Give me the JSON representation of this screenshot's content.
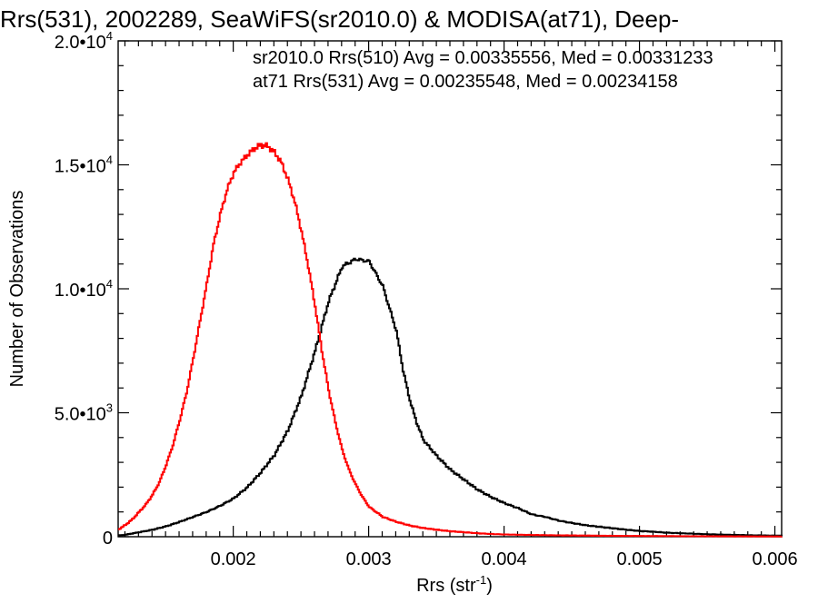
{
  "chart_data": {
    "type": "line",
    "title": "Rrs(531), 2002289, SeaWiFS(sr2010.0) & MODISA(at71), Deep-",
    "xlabel": "Rrs (str",
    "xlabel_sup": "-1",
    "xlabel_end": ")",
    "ylabel": "Number of Observations",
    "xlim": [
      0.00115,
      0.00605
    ],
    "ylim": [
      0,
      20000
    ],
    "x_ticks": [
      {
        "value": 0.002,
        "label": "0.002"
      },
      {
        "value": 0.003,
        "label": "0.003"
      },
      {
        "value": 0.004,
        "label": "0.004"
      },
      {
        "value": 0.005,
        "label": "0.005"
      },
      {
        "value": 0.006,
        "label": "0.006"
      }
    ],
    "y_ticks": [
      {
        "value": 0,
        "mantissa": "0",
        "exp": ""
      },
      {
        "value": 5000,
        "mantissa": "5.0•10",
        "exp": "3"
      },
      {
        "value": 10000,
        "mantissa": "1.0•10",
        "exp": "4"
      },
      {
        "value": 15000,
        "mantissa": "1.5•10",
        "exp": "4"
      },
      {
        "value": 20000,
        "mantissa": "2.0•10",
        "exp": "4"
      }
    ],
    "grid": false,
    "step_histogram": true,
    "series": [
      {
        "label": "sr2010.0 Rrs(510) Avg = 0.00335556, Med = 0.00331233",
        "color": "#000000",
        "x": [
          0.00115,
          0.0012,
          0.0013,
          0.0014,
          0.0015,
          0.0016,
          0.0017,
          0.0018,
          0.0019,
          0.002,
          0.0021,
          0.0022,
          0.0023,
          0.0024,
          0.0025,
          0.0026,
          0.0027,
          0.0028,
          0.0029,
          0.003,
          0.0031,
          0.0032,
          0.00325,
          0.0033,
          0.00335,
          0.0034,
          0.0035,
          0.0036,
          0.0037,
          0.0038,
          0.0039,
          0.004,
          0.0041,
          0.0042,
          0.0043,
          0.0044,
          0.0045,
          0.0046,
          0.0047,
          0.0048,
          0.0049,
          0.005,
          0.0051,
          0.0052,
          0.0053,
          0.0054,
          0.0055,
          0.0056,
          0.0057,
          0.0058,
          0.0059,
          0.006,
          0.00605
        ],
        "y": [
          50,
          80,
          180,
          280,
          420,
          600,
          800,
          1000,
          1250,
          1550,
          2000,
          2600,
          3300,
          4300,
          5700,
          7500,
          9500,
          10900,
          11200,
          11100,
          10100,
          8300,
          6700,
          5500,
          4600,
          3900,
          3250,
          2700,
          2300,
          1900,
          1600,
          1350,
          1150,
          900,
          800,
          650,
          550,
          460,
          400,
          340,
          280,
          230,
          200,
          160,
          140,
          120,
          100,
          85,
          75,
          60,
          50,
          45,
          40
        ]
      },
      {
        "label": "at71 Rrs(531) Avg = 0.00235548, Med = 0.00234158",
        "color": "#ff0000",
        "x": [
          0.00115,
          0.0012,
          0.00125,
          0.0013,
          0.00135,
          0.0014,
          0.00145,
          0.0015,
          0.00155,
          0.0016,
          0.00165,
          0.0017,
          0.00175,
          0.0018,
          0.00185,
          0.0019,
          0.00195,
          0.002,
          0.00205,
          0.0021,
          0.00215,
          0.0022,
          0.00225,
          0.0023,
          0.00235,
          0.0024,
          0.00245,
          0.0025,
          0.00255,
          0.0026,
          0.00265,
          0.0027,
          0.00275,
          0.0028,
          0.00285,
          0.0029,
          0.00295,
          0.003,
          0.0031,
          0.0032,
          0.0033,
          0.0034,
          0.0035,
          0.0036,
          0.0037,
          0.0038,
          0.0039,
          0.004,
          0.0042,
          0.0044,
          0.0046,
          0.0048,
          0.005,
          0.0052,
          0.0054,
          0.0056,
          0.0058,
          0.00605
        ],
        "y": [
          300,
          480,
          700,
          1000,
          1300,
          1700,
          2200,
          2900,
          3700,
          4700,
          5800,
          7200,
          8700,
          10200,
          11800,
          13000,
          14000,
          14700,
          15100,
          15400,
          15650,
          15800,
          15750,
          15500,
          15100,
          14400,
          13500,
          12300,
          10900,
          9300,
          7500,
          5900,
          4600,
          3500,
          2700,
          2100,
          1600,
          1200,
          800,
          600,
          450,
          350,
          280,
          220,
          180,
          140,
          110,
          90,
          70,
          55,
          45,
          35,
          30,
          25,
          20,
          15,
          12,
          10
        ]
      }
    ]
  }
}
